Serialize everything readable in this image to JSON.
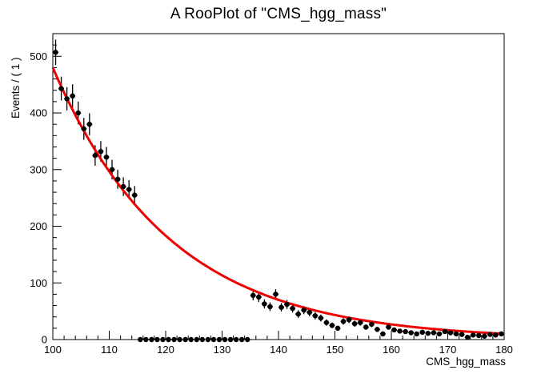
{
  "page": {
    "background": "#ffffff"
  },
  "chart_data": {
    "type": "scatter",
    "title": "A RooPlot of \"CMS_hgg_mass\"",
    "xlabel": "CMS_hgg_mass",
    "ylabel": "Events / ( 1 )",
    "xlim": [
      100,
      180
    ],
    "ylim": [
      0,
      540
    ],
    "x_major_ticks": [
      100,
      110,
      120,
      130,
      140,
      150,
      160,
      170,
      180
    ],
    "x_minor_step": 2,
    "y_major_ticks": [
      0,
      100,
      200,
      300,
      400,
      500
    ],
    "y_minor_step": 20,
    "grid": false,
    "legend": "none",
    "series": [
      {
        "name": "data",
        "type": "scatter",
        "marker": "filled-circle",
        "color": "#000000",
        "marker_size": 3.2,
        "errors": "poisson-sqrt",
        "x_bin_halfwidth": 0.5,
        "x": [
          100.5,
          101.5,
          102.5,
          103.5,
          104.5,
          105.5,
          106.5,
          107.5,
          108.5,
          109.5,
          110.5,
          111.5,
          112.5,
          113.5,
          114.5,
          115.5,
          116.5,
          117.5,
          118.5,
          119.5,
          120.5,
          121.5,
          122.5,
          123.5,
          124.5,
          125.5,
          126.5,
          127.5,
          128.5,
          129.5,
          130.5,
          131.5,
          132.5,
          133.5,
          134.5,
          135.5,
          136.5,
          137.5,
          138.5,
          139.5,
          140.5,
          141.5,
          142.5,
          143.5,
          144.5,
          145.5,
          146.5,
          147.5,
          148.5,
          149.5,
          150.5,
          151.5,
          152.5,
          153.5,
          154.5,
          155.5,
          156.5,
          157.5,
          158.5,
          159.5,
          160.5,
          161.5,
          162.5,
          163.5,
          164.5,
          165.5,
          166.5,
          167.5,
          168.5,
          169.5,
          170.5,
          171.5,
          172.5,
          173.5,
          174.5,
          175.5,
          176.5,
          177.5,
          178.5,
          179.5
        ],
        "y": [
          507,
          443,
          425,
          430,
          400,
          372,
          380,
          325,
          332,
          322,
          300,
          283,
          270,
          265,
          255,
          0,
          0,
          0,
          0,
          0,
          0,
          0,
          0,
          0,
          0,
          0,
          0,
          0,
          0,
          0,
          0,
          0,
          0,
          0,
          0,
          78,
          75,
          63,
          58,
          80,
          57,
          62,
          55,
          45,
          52,
          48,
          42,
          38,
          30,
          25,
          20,
          32,
          35,
          28,
          30,
          22,
          27,
          18,
          10,
          22,
          17,
          15,
          14,
          12,
          10,
          13,
          11,
          12,
          10,
          14,
          12,
          10,
          9,
          4,
          8,
          7,
          6,
          9,
          8,
          10
        ]
      },
      {
        "name": "exponential-background-fit",
        "type": "line",
        "color": "#ee0000",
        "line_width": 3,
        "model": "A*exp(-k*(x-100))",
        "A": 480,
        "k": 0.0481,
        "x_range": [
          100,
          180
        ]
      }
    ]
  }
}
